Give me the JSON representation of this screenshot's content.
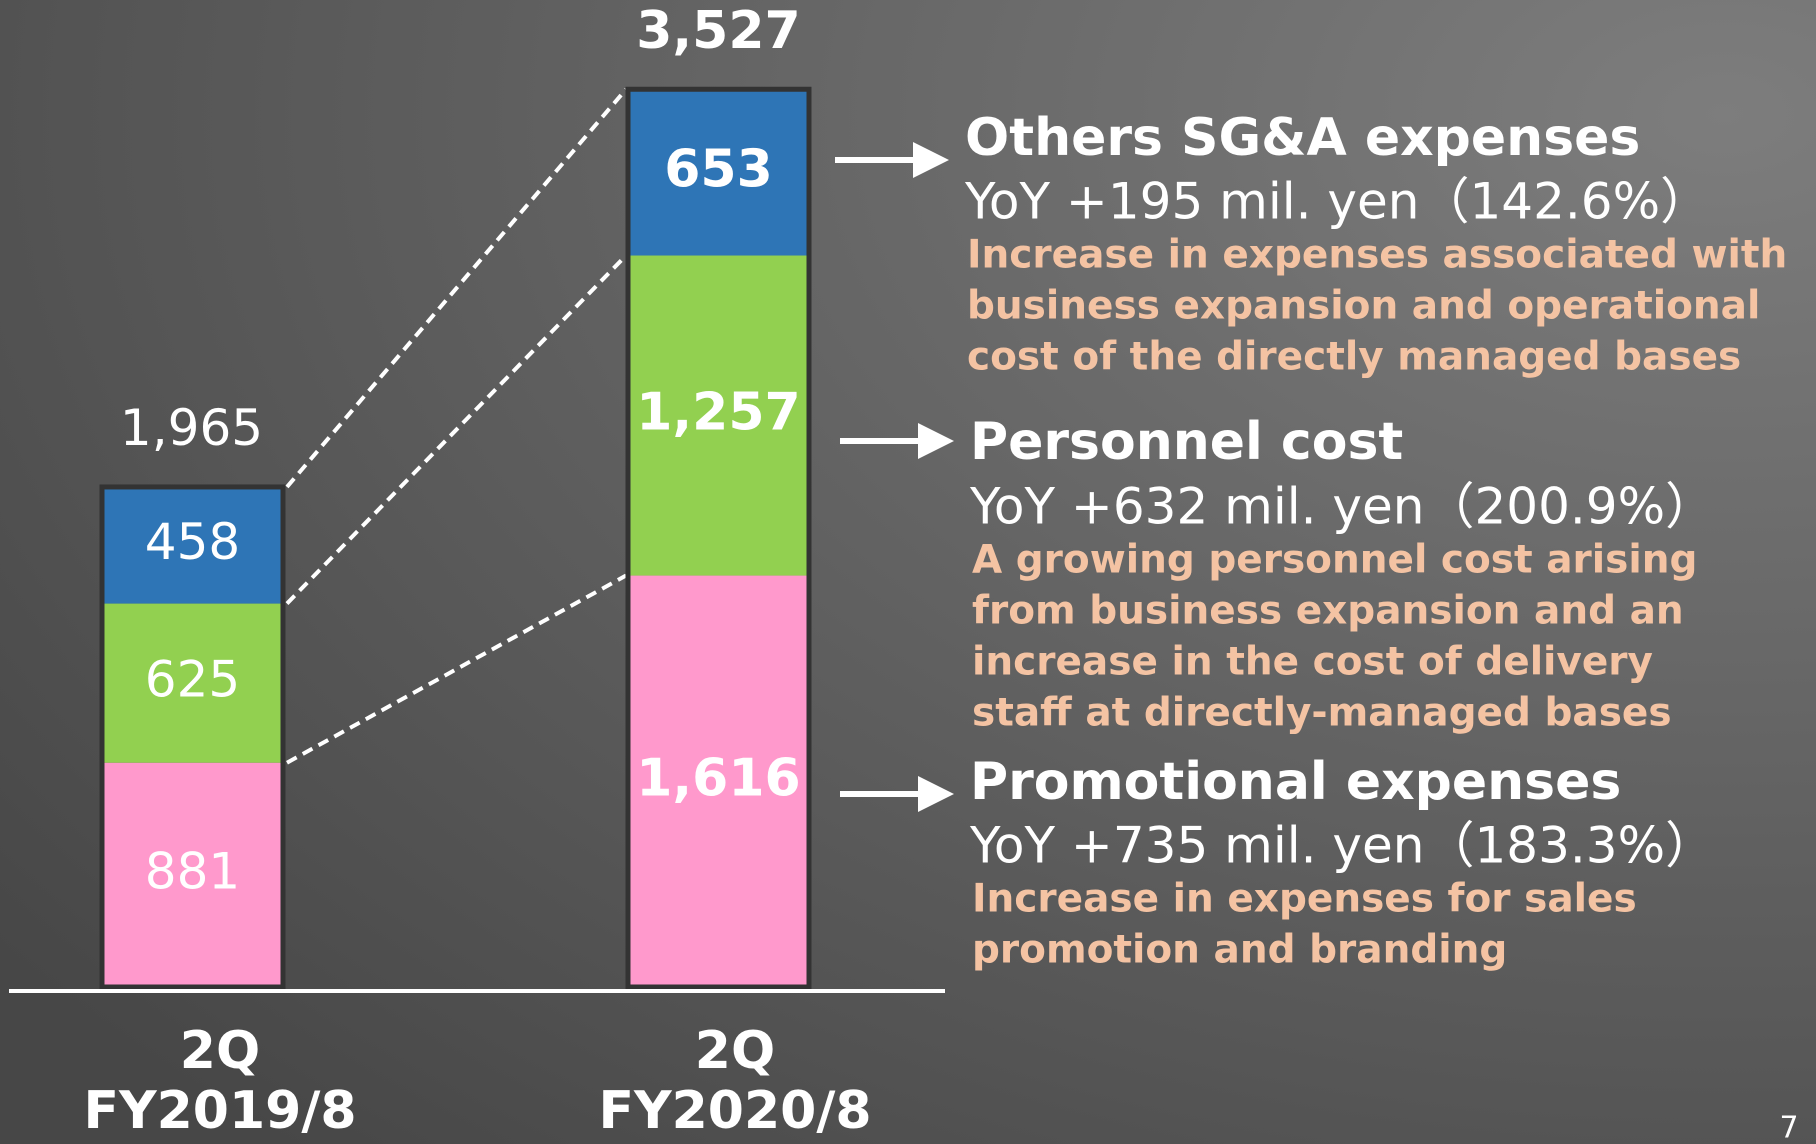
{
  "chart_data": {
    "type": "bar",
    "stacked": true,
    "categories": [
      [
        "2Q",
        "FY2019/8"
      ],
      [
        "2Q",
        "FY2020/8"
      ]
    ],
    "ylim": [
      0,
      3527
    ],
    "series": [
      {
        "name": "Promotional expenses",
        "color": "#ff99cc",
        "values": [
          881,
          1616
        ],
        "value_labels": [
          "881",
          "1,616"
        ]
      },
      {
        "name": "Personnel cost",
        "color": "#92d050",
        "values": [
          625,
          1257
        ],
        "value_labels": [
          "625",
          "1,257"
        ]
      },
      {
        "name": "Others SG&A expenses",
        "color": "#2e75b6",
        "values": [
          458,
          653
        ],
        "value_labels": [
          "458",
          "653"
        ]
      }
    ],
    "totals": [
      1965,
      3527
    ],
    "total_labels": [
      "1,965",
      "3,527"
    ],
    "annotations": [
      {
        "yoy": "YoY +735 mil. yen（183.3%）",
        "lines": [
          "Increase in expenses for sales",
          "promotion and branding"
        ]
      },
      {
        "yoy": "YoY +632 mil. yen（200.9%）",
        "lines": [
          "A growing personnel cost arising",
          "from business expansion and an",
          "increase in the cost of delivery",
          "staff at directly-managed bases"
        ]
      },
      {
        "yoy": "YoY +195 mil. yen（142.6%）",
        "lines": [
          "Increase in expenses associated with",
          "business expansion and operational",
          "cost of the directly managed bases"
        ]
      }
    ],
    "page_number": "7"
  }
}
